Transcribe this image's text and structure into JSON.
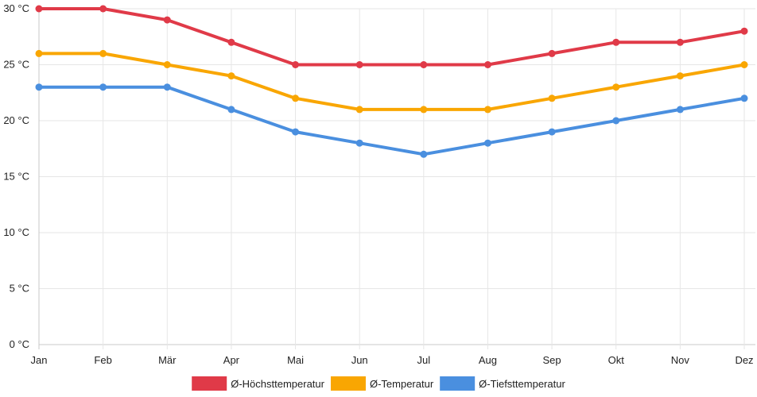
{
  "chart_data": {
    "type": "line",
    "categories": [
      "Jan",
      "Feb",
      "Mär",
      "Apr",
      "Mai",
      "Jun",
      "Jul",
      "Aug",
      "Sep",
      "Okt",
      "Nov",
      "Dez"
    ],
    "y_unit": "°C",
    "ylim": [
      0,
      30
    ],
    "y_ticks": [
      0,
      5,
      10,
      15,
      20,
      25,
      30
    ],
    "grid": true,
    "legend_position": "bottom",
    "series": [
      {
        "name": "Ø-Höchsttemperatur",
        "color": "#e03a48",
        "values": [
          30,
          30,
          29,
          27,
          25,
          25,
          25,
          25,
          26,
          27,
          27,
          28
        ]
      },
      {
        "name": "Ø-Temperatur",
        "color": "#f9a602",
        "values": [
          26,
          26,
          25,
          24,
          22,
          21,
          21,
          21,
          22,
          23,
          24,
          25
        ]
      },
      {
        "name": "Ø-Tiefsttemperatur",
        "color": "#4a8fdf",
        "values": [
          23,
          23,
          23,
          21,
          19,
          18,
          17,
          18,
          19,
          20,
          21,
          22
        ]
      }
    ]
  }
}
